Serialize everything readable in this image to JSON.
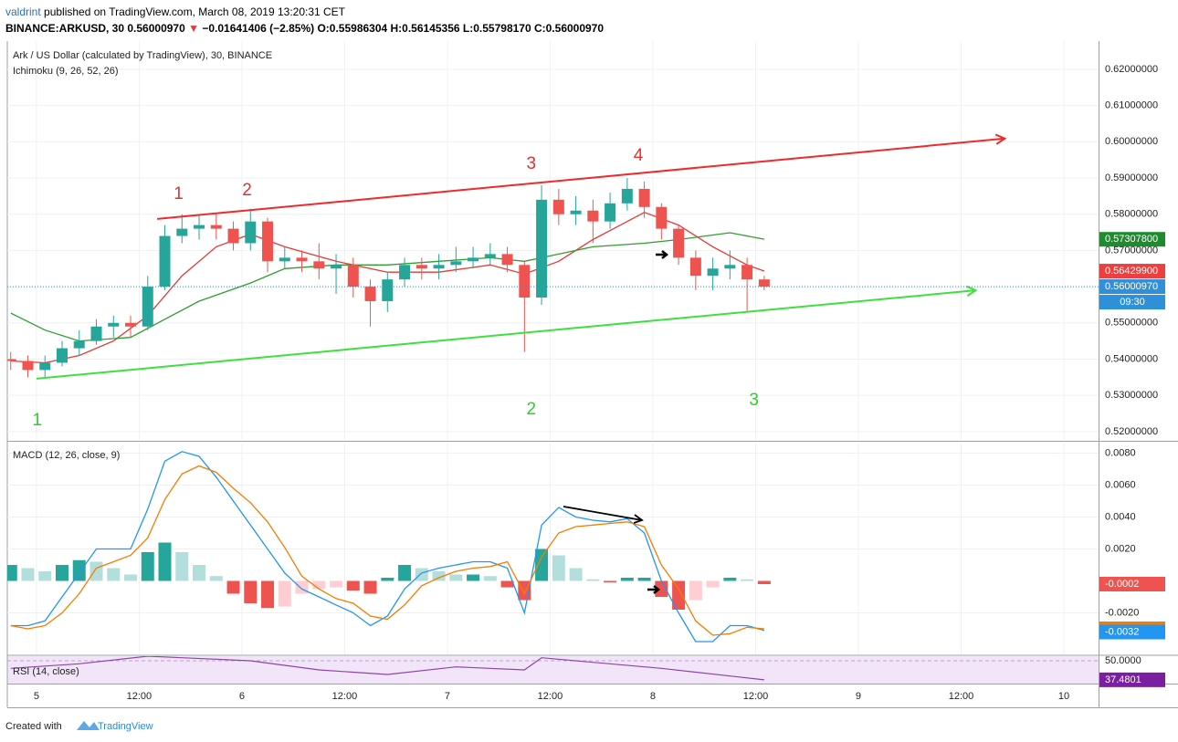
{
  "header": {
    "author": "valdrint",
    "published": "published on TradingView.com, March 08, 2019 13:20:31 CET",
    "symbol": "BINANCE:ARKUSD, 30",
    "last": "0.56000970",
    "direction": "▼",
    "change": "−0.01641406 (−2.85%)",
    "ohlc": "O:0.55986304 H:0.56145356 L:0.55798170 C:0.56000970"
  },
  "footer": {
    "created": "Created with",
    "brand": "TradingView"
  },
  "chart_data": [
    {
      "type": "candlestick",
      "title": "Ark / US Dollar (calculated by TradingView), 30, BINANCE",
      "subtitle": "Ichimoku (9, 26, 52, 26)",
      "x": [
        -3,
        -1,
        1,
        3,
        5,
        7,
        9,
        11,
        13,
        15,
        17,
        19,
        21,
        23,
        25,
        27,
        29,
        31,
        33,
        35,
        37,
        39,
        41,
        43,
        45,
        47,
        49,
        51,
        53,
        55,
        57,
        59,
        61,
        63,
        65,
        67,
        69,
        71,
        73,
        75,
        77,
        79,
        81,
        83,
        85
      ],
      "open": [
        0.54,
        0.5395,
        0.537,
        0.539,
        0.543,
        0.545,
        0.549,
        0.55,
        0.549,
        0.56,
        0.574,
        0.576,
        0.577,
        0.576,
        0.572,
        0.578,
        0.567,
        0.568,
        0.567,
        0.565,
        0.566,
        0.56,
        0.556,
        0.562,
        0.566,
        0.565,
        0.566,
        0.567,
        0.568,
        0.569,
        0.566,
        0.557,
        0.584,
        0.58,
        0.581,
        0.578,
        0.583,
        0.587,
        0.582,
        0.576,
        0.568,
        0.563,
        0.565,
        0.566,
        0.562
      ],
      "high": [
        0.542,
        0.541,
        0.541,
        0.545,
        0.548,
        0.551,
        0.552,
        0.552,
        0.563,
        0.577,
        0.58,
        0.58,
        0.58,
        0.578,
        0.5815,
        0.579,
        0.571,
        0.57,
        0.572,
        0.569,
        0.568,
        0.562,
        0.564,
        0.568,
        0.568,
        0.569,
        0.571,
        0.571,
        0.572,
        0.571,
        0.567,
        0.588,
        0.587,
        0.585,
        0.584,
        0.586,
        0.59,
        0.589,
        0.583,
        0.577,
        0.57,
        0.568,
        0.57,
        0.568,
        0.563
      ],
      "low": [
        0.537,
        0.535,
        0.535,
        0.538,
        0.541,
        0.544,
        0.546,
        0.546,
        0.548,
        0.559,
        0.572,
        0.573,
        0.573,
        0.57,
        0.57,
        0.564,
        0.565,
        0.564,
        0.562,
        0.558,
        0.557,
        0.549,
        0.553,
        0.56,
        0.562,
        0.562,
        0.564,
        0.565,
        0.566,
        0.564,
        0.542,
        0.555,
        0.577,
        0.577,
        0.572,
        0.576,
        0.581,
        0.579,
        0.573,
        0.566,
        0.559,
        0.559,
        0.562,
        0.553,
        0.559
      ],
      "close": [
        0.5395,
        0.537,
        0.539,
        0.543,
        0.545,
        0.549,
        0.55,
        0.549,
        0.56,
        0.574,
        0.576,
        0.577,
        0.576,
        0.572,
        0.578,
        0.567,
        0.568,
        0.567,
        0.565,
        0.566,
        0.56,
        0.556,
        0.562,
        0.566,
        0.565,
        0.566,
        0.567,
        0.568,
        0.569,
        0.566,
        0.557,
        0.584,
        0.58,
        0.581,
        0.578,
        0.583,
        0.587,
        0.582,
        0.576,
        0.568,
        0.563,
        0.565,
        0.566,
        0.562,
        0.56
      ],
      "up_color": "#26a69a",
      "down_color": "#ef5350",
      "lines": [
        {
          "color": "#e53935",
          "x": [
            -3,
            1,
            5,
            9,
            13,
            17,
            21,
            25,
            29,
            35,
            41,
            47,
            53,
            57,
            61,
            65,
            69,
            71,
            75,
            79,
            83,
            85
          ],
          "values": [
            0.5395,
            0.539,
            0.541,
            0.545,
            0.552,
            0.563,
            0.571,
            0.5745,
            0.571,
            0.567,
            0.564,
            0.564,
            0.566,
            0.5635,
            0.567,
            0.573,
            0.578,
            0.5805,
            0.577,
            0.571,
            0.566,
            0.5643
          ]
        },
        {
          "color": "#2e9e2e",
          "x": [
            -3,
            1,
            5,
            11,
            15,
            19,
            25,
            29,
            35,
            41,
            47,
            53,
            57,
            61,
            65,
            71,
            75,
            81,
            85
          ],
          "values": [
            0.5527,
            0.548,
            0.545,
            0.546,
            0.551,
            0.556,
            0.561,
            0.565,
            0.566,
            0.566,
            0.567,
            0.568,
            0.567,
            0.569,
            0.571,
            0.572,
            0.573,
            0.5749,
            0.5731
          ]
        }
      ],
      "trendlines": [
        {
          "color": "#f02a2a",
          "x": [
            14.1,
            113.1
          ],
          "values": [
            0.5787,
            0.6009
          ]
        },
        {
          "color": "#3ee03e",
          "x": [
            0,
            109.7
          ],
          "values": [
            0.5346,
            0.559
          ]
        }
      ],
      "annotations": [
        {
          "text": "1",
          "color": "#e53030",
          "x": 16.6,
          "y": 0.5855
        },
        {
          "text": "2",
          "color": "#e53030",
          "x": 24.6,
          "y": 0.5865
        },
        {
          "text": "3",
          "color": "#e53030",
          "x": 57.8,
          "y": 0.5938
        },
        {
          "text": "4",
          "color": "#e53030",
          "x": 70.3,
          "y": 0.5961
        },
        {
          "text": "1",
          "color": "#2bd12b",
          "x": 0.1,
          "y": 0.523
        },
        {
          "text": "2",
          "color": "#2bd12b",
          "x": 57.8,
          "y": 0.526
        },
        {
          "text": "3",
          "color": "#2bd12b",
          "x": 83.8,
          "y": 0.5286
        }
      ],
      "price_labels": [
        {
          "value": 0.573078,
          "label": "0.57307800",
          "color": "#1e8c2e"
        },
        {
          "value": 0.564299,
          "label": "0.56429900",
          "color": "#ef3e3e"
        },
        {
          "value": 0.5600097,
          "label": "0.56000970",
          "color": "#2f8fd8",
          "line_style": "dotted",
          "countdown": "09:30"
        }
      ],
      "xlim": [
        -3.4,
        124.05
      ],
      "xticks": [
        {
          "value": 0,
          "label": "5"
        },
        {
          "value": 12,
          "label": "12:00"
        },
        {
          "value": 24,
          "label": "6"
        },
        {
          "value": 36,
          "label": "12:00"
        },
        {
          "value": 48,
          "label": "7"
        },
        {
          "value": 60,
          "label": "12:00"
        },
        {
          "value": 72,
          "label": "8"
        },
        {
          "value": 84,
          "label": "12:00"
        },
        {
          "value": 96,
          "label": "9"
        },
        {
          "value": 108,
          "label": "12:00"
        },
        {
          "value": 120,
          "label": "10"
        }
      ],
      "ylim": [
        0.5177,
        0.6278
      ],
      "yticks": [
        {
          "value": 0.62,
          "label": "0.62000000"
        },
        {
          "value": 0.61,
          "label": "0.61000000"
        },
        {
          "value": 0.6,
          "label": "0.60000000"
        },
        {
          "value": 0.59,
          "label": "0.59000000"
        },
        {
          "value": 0.58,
          "label": "0.58000000"
        },
        {
          "value": 0.57,
          "label": "0.57000000"
        },
        {
          "value": 0.56,
          "label": "0.56000000"
        },
        {
          "value": 0.55,
          "label": "0.55000000"
        },
        {
          "value": 0.54,
          "label": "0.54000000"
        },
        {
          "value": 0.53,
          "label": "0.53000000"
        },
        {
          "value": 0.52,
          "label": "0.52000000"
        }
      ],
      "grid": true
    },
    {
      "type": "macd",
      "title": "MACD (12, 26, close, 9)",
      "x": [
        -3,
        -1,
        1,
        3,
        5,
        7,
        9,
        11,
        13,
        15,
        17,
        19,
        21,
        23,
        25,
        27,
        29,
        31,
        33,
        35,
        37,
        39,
        41,
        43,
        45,
        47,
        49,
        51,
        53,
        55,
        57,
        59,
        61,
        63,
        65,
        67,
        69,
        71,
        73,
        75,
        77,
        79,
        81,
        83,
        85
      ],
      "histogram": [
        0.001,
        0.0008,
        0.0006,
        0.001,
        0.0013,
        0.0012,
        0.0008,
        0.0004,
        0.0018,
        0.0024,
        0.0018,
        0.001,
        0.0003,
        -0.0008,
        -0.0014,
        -0.0017,
        -0.0016,
        -0.0008,
        -0.0005,
        -0.0004,
        -0.0006,
        -0.0008,
        0.0002,
        0.001,
        0.0008,
        0.0006,
        0.0004,
        0.0004,
        0.0003,
        -0.0004,
        -0.0012,
        0.002,
        0.0016,
        0.0008,
        0.0001,
        -0.0001,
        0.0002,
        0.0002,
        -0.001,
        -0.0018,
        -0.0012,
        -0.0004,
        0.0002,
        0.0001,
        -0.0002
      ],
      "histogram_colors": {
        "up_strong": "#26a69a",
        "up_weak": "#b2dfdb",
        "down_strong": "#ef5350",
        "down_weak": "#ffcdd2"
      },
      "series": [
        {
          "color": "#2196f3",
          "values": [
            -0.0028,
            -0.0028,
            -0.0025,
            -0.001,
            0.0005,
            0.002,
            0.002,
            0.002,
            0.0045,
            0.0075,
            0.0081,
            0.0078,
            0.0065,
            0.005,
            0.0035,
            0.002,
            0.0005,
            -0.0005,
            -0.001,
            -0.0015,
            -0.002,
            -0.0028,
            -0.0022,
            -0.0005,
            0.0005,
            0.0008,
            0.001,
            0.0012,
            0.0012,
            0.0008,
            -0.002,
            0.0035,
            0.0046,
            0.004,
            0.0038,
            0.0037,
            0.0039,
            0.003,
            0.0,
            -0.002,
            -0.0038,
            -0.0038,
            -0.0028,
            -0.0028,
            -0.0031
          ]
        },
        {
          "color": "#f57c00",
          "values": [
            -0.0028,
            -0.003,
            -0.0028,
            -0.002,
            -0.0008,
            0.0008,
            0.0012,
            0.0016,
            0.0027,
            0.0051,
            0.0067,
            0.0072,
            0.0068,
            0.0058,
            0.0049,
            0.0037,
            0.0021,
            0.0003,
            -0.0005,
            -0.0011,
            -0.0014,
            -0.0022,
            -0.0024,
            -0.0015,
            -0.0003,
            0.0002,
            0.0006,
            0.0008,
            0.0009,
            0.0012,
            -0.0008,
            0.0015,
            0.003,
            0.0034,
            0.0035,
            0.0036,
            0.0037,
            0.0034,
            0.001,
            -0.0005,
            -0.0025,
            -0.0034,
            -0.0033,
            -0.0029,
            -0.003
          ]
        }
      ],
      "price_labels": [
        {
          "value": -0.0002,
          "label": "-0.0002",
          "color": "#ef5350"
        },
        {
          "value": -0.003,
          "label": "-0.0030",
          "color": "#f57c00"
        },
        {
          "value": -0.0032,
          "label": "-0.0032",
          "color": "#2196f3"
        }
      ],
      "xlim": [
        -3.4,
        124.05
      ],
      "ylim": [
        -0.0046,
        0.0086
      ],
      "yticks": [
        {
          "value": 0.008,
          "label": "0.0080"
        },
        {
          "value": 0.006,
          "label": "0.0060"
        },
        {
          "value": 0.004,
          "label": "0.0040"
        },
        {
          "value": 0.002,
          "label": "0.0020"
        },
        {
          "value": -0.002,
          "label": "-0.0020"
        }
      ],
      "grid": true
    },
    {
      "type": "line",
      "title": "RSI (14, close)",
      "x": [
        -3,
        5,
        13,
        17,
        25,
        33,
        41,
        49,
        57,
        59,
        65,
        73,
        81,
        85
      ],
      "values": [
        45,
        48,
        53,
        52,
        50,
        44,
        41,
        46,
        44,
        52,
        49,
        45,
        40,
        37.4801
      ],
      "color": "#8e44ad",
      "xlim": [
        -3.4,
        124.05
      ],
      "ylim": [
        35,
        53
      ],
      "yticks": [
        {
          "value": 50,
          "label": "50.0000"
        }
      ],
      "price_labels": [
        {
          "value": 37.4801,
          "label": "37.4801",
          "color": "#7b1fa2"
        }
      ]
    }
  ]
}
